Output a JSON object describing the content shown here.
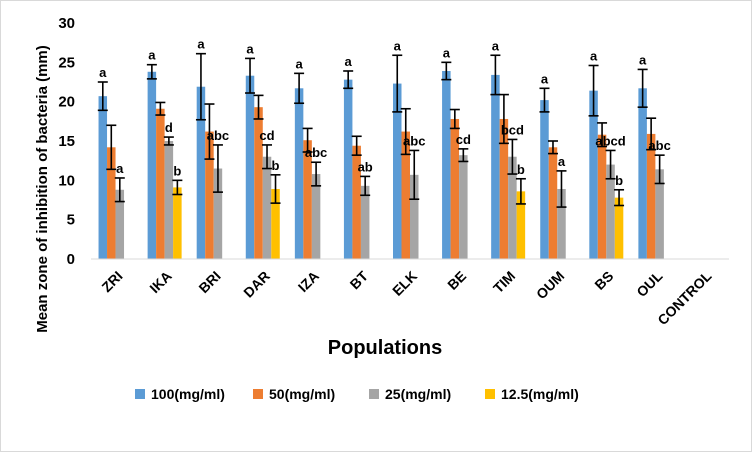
{
  "chart_data": {
    "type": "bar",
    "xlabel": "Populations",
    "ylabel": "Mean zone of inhibition of bacteria (mm)",
    "ylim": [
      0,
      30
    ],
    "yticks": [
      0,
      5,
      10,
      15,
      20,
      25,
      30
    ],
    "grid": false,
    "legend_position": "bottom",
    "categories": [
      "ZRI",
      "IKA",
      "BRI",
      "DAR",
      "IZA",
      "BT",
      "ELK",
      "BE",
      "TIM",
      "OUM",
      "BS",
      "OUL",
      "CONTROL"
    ],
    "series": [
      {
        "name": "100(mg/ml)",
        "color": "#5B9BD5",
        "values": [
          20.7,
          23.8,
          21.9,
          23.3,
          21.7,
          22.8,
          22.3,
          23.9,
          23.4,
          20.2,
          21.4,
          21.7,
          0
        ],
        "errors": [
          1.8,
          0.9,
          4.2,
          2.2,
          1.9,
          1.1,
          3.6,
          1.1,
          2.5,
          1.5,
          3.2,
          2.4,
          0
        ],
        "labels": [
          "a",
          "a",
          "a",
          "a",
          "a",
          "a",
          "a",
          "a",
          "a",
          "a",
          "a",
          "a",
          ""
        ]
      },
      {
        "name": "50(mg/ml)",
        "color": "#ED7D31",
        "values": [
          14.2,
          19.1,
          16.2,
          19.3,
          15.1,
          14.4,
          16.2,
          17.8,
          17.8,
          14.2,
          15.8,
          15.9,
          0
        ],
        "errors": [
          2.8,
          0.8,
          3.5,
          1.5,
          1.5,
          1.2,
          2.9,
          1.2,
          3.1,
          0.8,
          1.5,
          2.0,
          0
        ],
        "labels": [
          "",
          "",
          "",
          "",
          "",
          "",
          "",
          "",
          "",
          "",
          "",
          "",
          ""
        ]
      },
      {
        "name": "25(mg/ml)",
        "color": "#A5A5A5",
        "values": [
          8.8,
          15.0,
          11.5,
          13.0,
          10.8,
          9.3,
          10.7,
          13.2,
          13.0,
          8.9,
          12.0,
          11.4,
          0
        ],
        "errors": [
          1.5,
          0.5,
          3.0,
          1.5,
          1.5,
          1.2,
          3.1,
          0.8,
          2.2,
          2.3,
          1.8,
          1.8,
          0
        ],
        "labels": [
          "a",
          "d",
          "abc",
          "cd",
          "abc",
          "ab",
          "abc",
          "cd",
          "bcd",
          "a",
          "abcd",
          "abc",
          ""
        ]
      },
      {
        "name": "12.5(mg/ml)",
        "color": "#FFC000",
        "values": [
          0,
          9.1,
          0,
          8.9,
          0,
          0,
          0,
          0,
          8.6,
          0,
          7.8,
          0,
          0
        ],
        "errors": [
          0,
          0.9,
          0,
          1.8,
          0,
          0,
          0,
          0,
          1.6,
          0,
          1.0,
          0,
          0
        ],
        "labels": [
          "",
          "b",
          "",
          "b",
          "",
          "",
          "",
          "",
          "b",
          "",
          "b",
          "",
          ""
        ]
      }
    ]
  }
}
